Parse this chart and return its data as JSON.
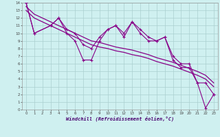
{
  "xlabel": "Windchill (Refroidissement éolien,°C)",
  "bg_color": "#cff0f0",
  "grid_color": "#aacfcf",
  "line_color": "#880088",
  "x_data": [
    0,
    1,
    2,
    3,
    4,
    5,
    6,
    7,
    8,
    9,
    10,
    11,
    12,
    13,
    14,
    15,
    16,
    17,
    18,
    19,
    20,
    21,
    22,
    23
  ],
  "y_main": [
    14,
    10,
    null,
    11,
    12,
    10,
    9,
    6.5,
    6.5,
    9,
    10.5,
    11,
    9.5,
    11.5,
    10,
    9,
    9,
    9.5,
    6.5,
    5.5,
    5.5,
    3.5,
    0.2,
    2
  ],
  "y_upper": [
    14,
    10,
    null,
    11,
    12,
    10.5,
    10,
    8.5,
    8,
    9.5,
    10.5,
    11,
    10,
    11.5,
    10.5,
    9.5,
    9,
    9.5,
    7,
    6,
    6,
    3.5,
    3.5,
    2
  ],
  "y_trend1": [
    13.5,
    12.5,
    12.0,
    11.5,
    11.0,
    10.5,
    10.0,
    9.5,
    9.0,
    8.8,
    8.5,
    8.2,
    8.0,
    7.8,
    7.5,
    7.2,
    6.8,
    6.5,
    6.2,
    5.8,
    5.4,
    5.0,
    4.5,
    3.5
  ],
  "y_trend2": [
    13.0,
    12.0,
    11.5,
    11.0,
    10.5,
    10.0,
    9.5,
    9.0,
    8.5,
    8.2,
    8.0,
    7.7,
    7.5,
    7.2,
    7.0,
    6.7,
    6.3,
    6.0,
    5.7,
    5.3,
    4.9,
    4.5,
    4.0,
    3.0
  ],
  "xlim": [
    -0.5,
    23.5
  ],
  "ylim": [
    0,
    14
  ],
  "xticks": [
    0,
    1,
    2,
    3,
    4,
    5,
    6,
    7,
    8,
    9,
    10,
    11,
    12,
    13,
    14,
    15,
    16,
    17,
    18,
    19,
    20,
    21,
    22,
    23
  ],
  "yticks": [
    0,
    1,
    2,
    3,
    4,
    5,
    6,
    7,
    8,
    9,
    10,
    11,
    12,
    13,
    14
  ]
}
